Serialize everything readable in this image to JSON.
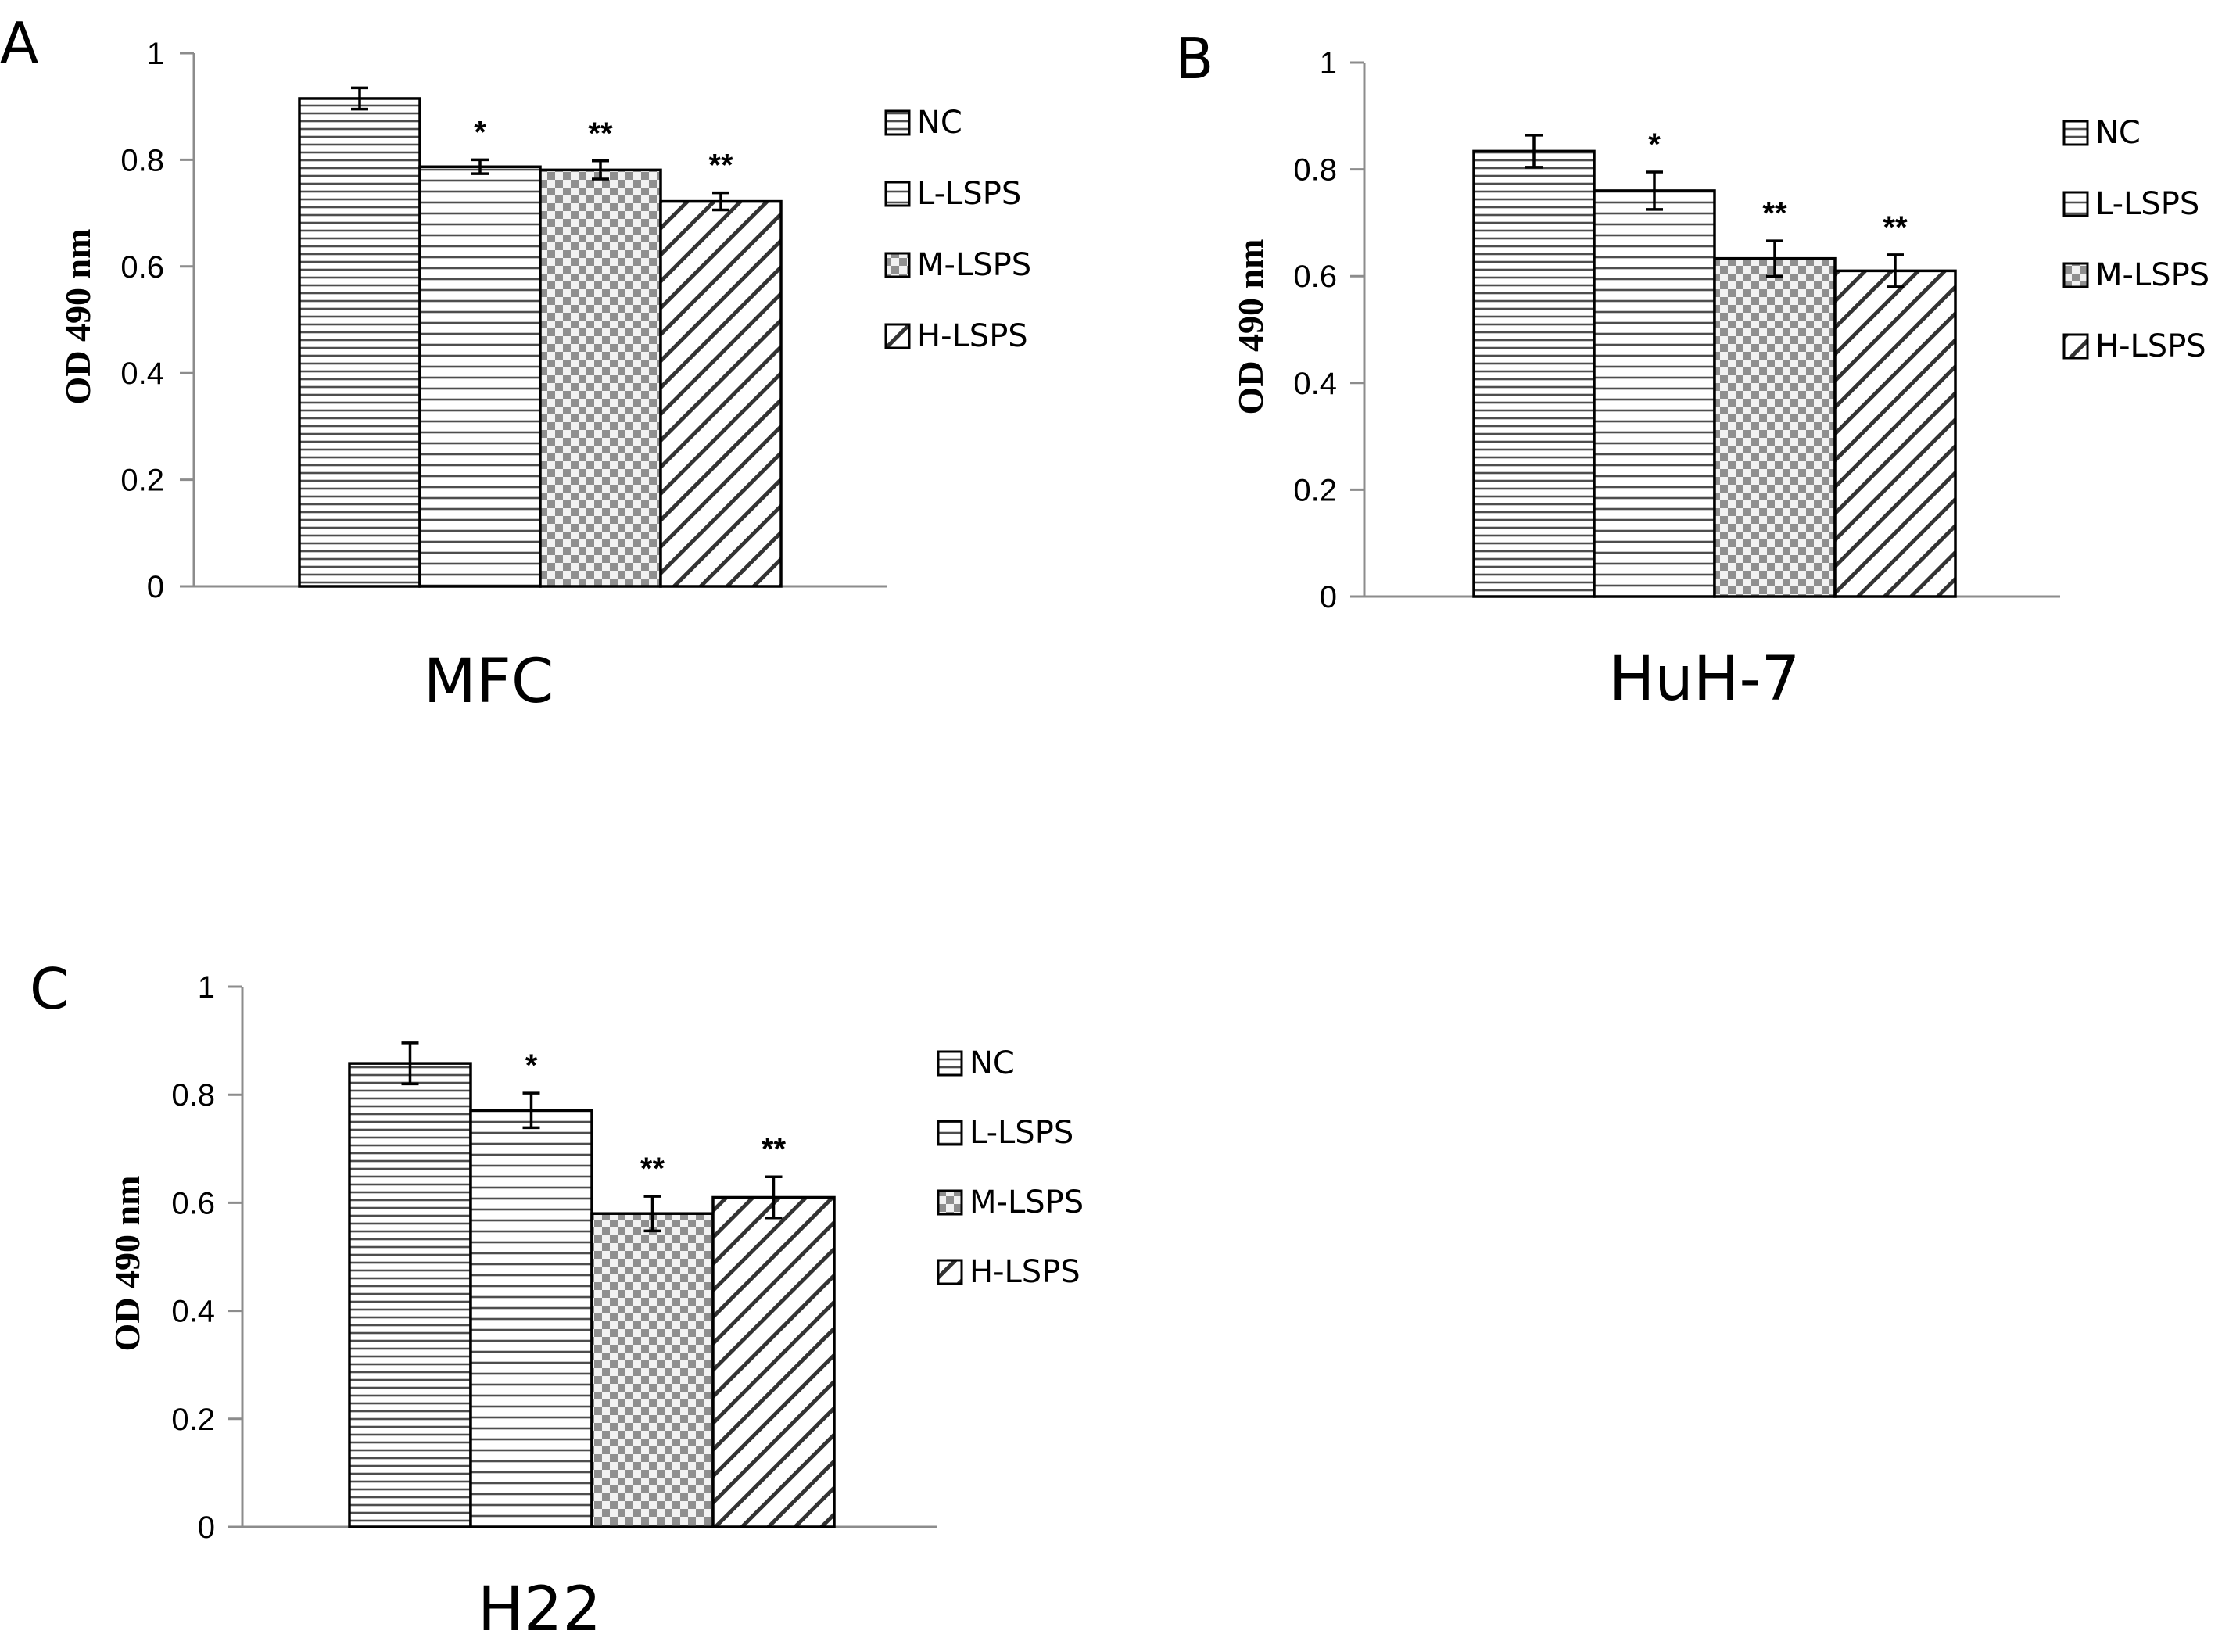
{
  "legend_labels": [
    "NC",
    "L-LSPS",
    "M-LSPS",
    "H-LSPS"
  ],
  "chart_data": [
    {
      "type": "bar",
      "panel": "A",
      "title": "",
      "xlabel": "MFC",
      "ylabel": "OD 490 nm",
      "ylim": [
        0,
        1
      ],
      "yticks": [
        "0",
        "0.2",
        "0.4",
        "0.6",
        "0.8",
        "1"
      ],
      "categories": [
        "NC",
        "L-LSPS",
        "M-LSPS",
        "H-LSPS"
      ],
      "values": [
        0.915,
        0.787,
        0.781,
        0.722
      ],
      "errors": [
        0.02,
        0.013,
        0.017,
        0.016
      ],
      "significance": [
        "",
        "*",
        "**",
        "**"
      ],
      "legend": [
        "NC",
        "L-LSPS",
        "M-LSPS",
        "H-LSPS"
      ]
    },
    {
      "type": "bar",
      "panel": "B",
      "title": "",
      "xlabel": "HuH-7",
      "ylabel": "OD 490 nm",
      "ylim": [
        0,
        1
      ],
      "yticks": [
        "0",
        "0.2",
        "0.4",
        "0.6",
        "0.8",
        "1"
      ],
      "categories": [
        "NC",
        "L-LSPS",
        "M-LSPS",
        "H-LSPS"
      ],
      "values": [
        0.834,
        0.76,
        0.633,
        0.61
      ],
      "errors": [
        0.03,
        0.035,
        0.033,
        0.03
      ],
      "significance": [
        "",
        "*",
        "**",
        "**"
      ],
      "legend": [
        "NC",
        "L-LSPS",
        "M-LSPS",
        "H-LSPS"
      ]
    },
    {
      "type": "bar",
      "panel": "C",
      "title": "",
      "xlabel": "H22",
      "ylabel": "OD 490 nm",
      "ylim": [
        0,
        1
      ],
      "yticks": [
        "0",
        "0.2",
        "0.4",
        "0.6",
        "0.8",
        "1"
      ],
      "categories": [
        "NC",
        "L-LSPS",
        "M-LSPS",
        "H-LSPS"
      ],
      "values": [
        0.858,
        0.771,
        0.58,
        0.61
      ],
      "errors": [
        0.038,
        0.032,
        0.032,
        0.038
      ],
      "significance": [
        "",
        "*",
        "**",
        "**"
      ],
      "legend": [
        "NC",
        "L-LSPS",
        "M-LSPS",
        "H-LSPS"
      ]
    }
  ]
}
